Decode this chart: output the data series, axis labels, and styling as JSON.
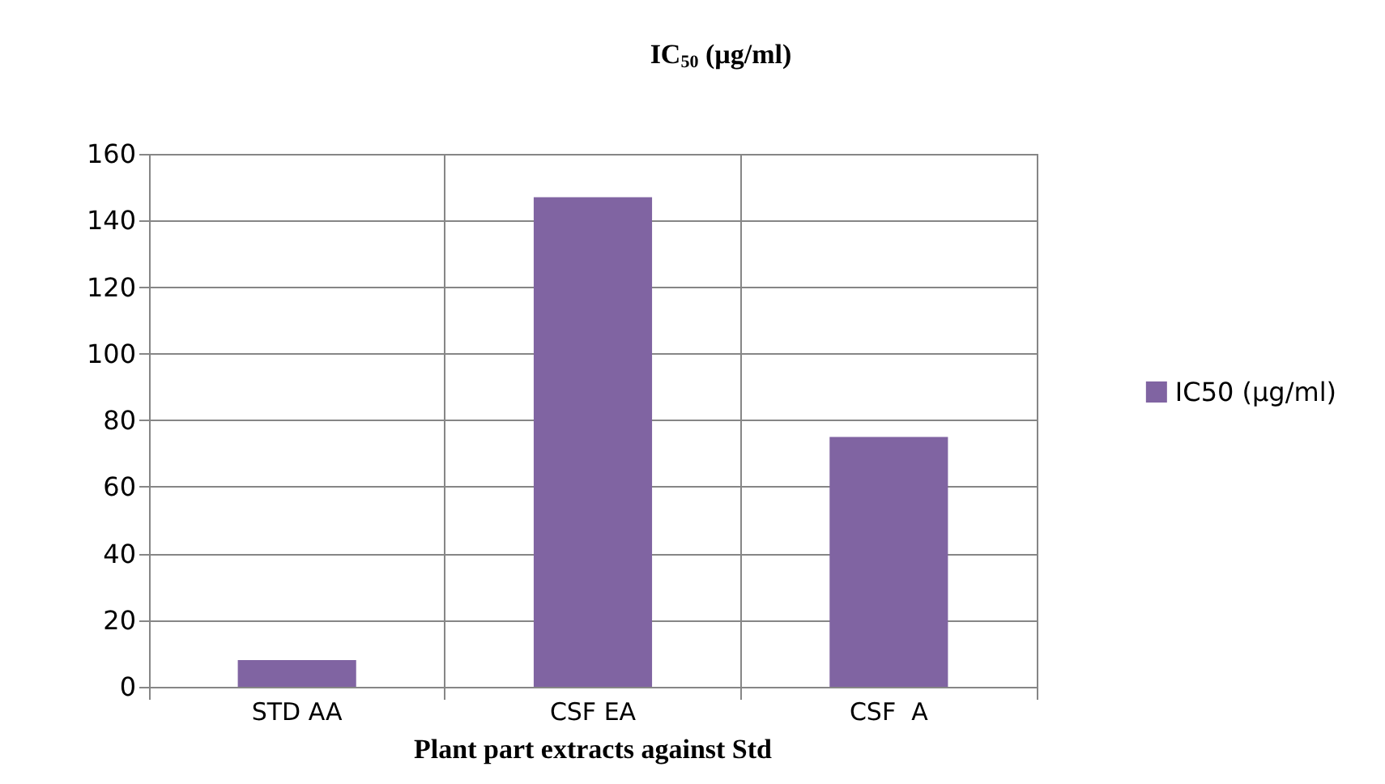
{
  "chart_data": {
    "type": "bar",
    "title": "IC$_{50}$ (µg/ml)",
    "xlabel": "Plant part extracts against Std",
    "categories": [
      "STD AA",
      "CSF EA",
      "CSF  A"
    ],
    "series": [
      {
        "name": "IC50 (µg/ml)",
        "color": "#8064a2",
        "values": [
          8,
          147,
          75
        ]
      }
    ],
    "ylim": [
      0,
      160
    ],
    "yticks": [
      0,
      20,
      40,
      60,
      80,
      100,
      120,
      140,
      160
    ],
    "grid": true,
    "legend": "right"
  }
}
